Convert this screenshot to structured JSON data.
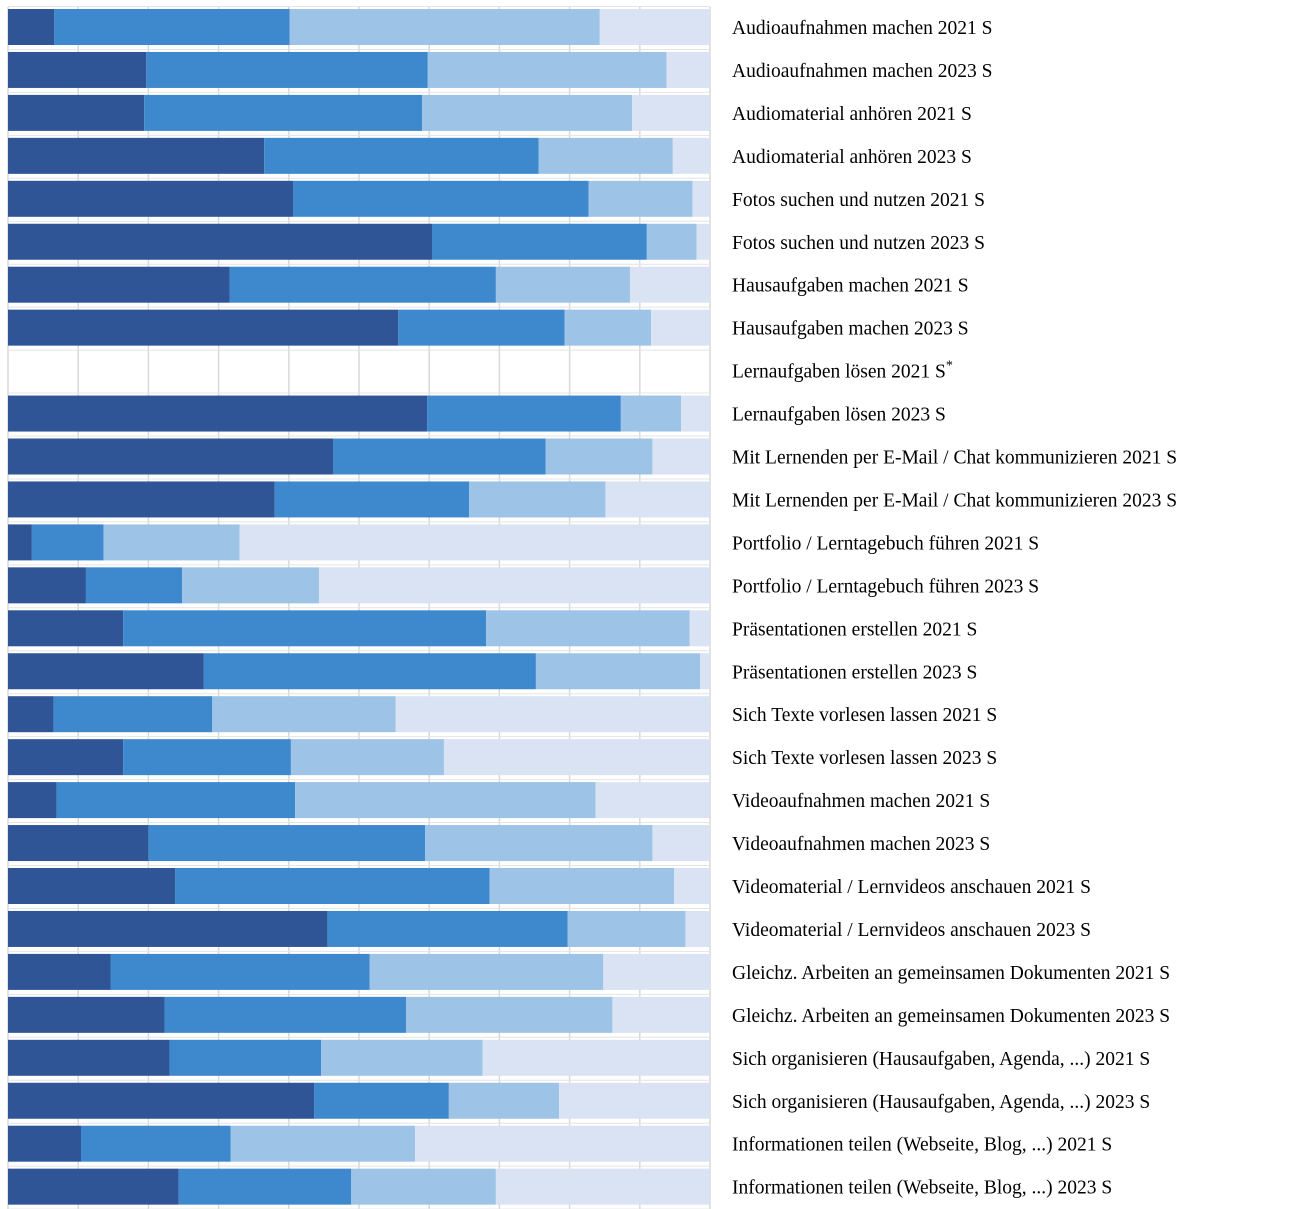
{
  "chart_data": {
    "type": "bar",
    "orientation": "horizontal",
    "stacked": true,
    "percent_stacked": true,
    "grid": true,
    "xlim": [
      0,
      100
    ],
    "colors": [
      "#2F5597",
      "#3E88CE",
      "#9DC3E6",
      "#DAE3F3"
    ],
    "categories": [
      {
        "label": "Audioaufnahmen machen 2021 S",
        "values": [
          6.6,
          33.5,
          44.2,
          15.7
        ]
      },
      {
        "label": "Audioaufnahmen machen 2023 S",
        "values": [
          19.7,
          40.1,
          34.0,
          6.2
        ]
      },
      {
        "label": "Audiomaterial anhören 2021 S",
        "values": [
          19.4,
          39.6,
          29.9,
          11.1
        ]
      },
      {
        "label": "Audiomaterial anhören 2023 S",
        "values": [
          36.5,
          39.1,
          19.1,
          5.3
        ]
      },
      {
        "label": "Fotos suchen und nutzen 2021 S",
        "values": [
          40.6,
          42.1,
          14.8,
          2.5
        ]
      },
      {
        "label": "Fotos suchen und nutzen 2023 S",
        "values": [
          60.4,
          30.6,
          7.1,
          1.9
        ]
      },
      {
        "label": "Hausaufgaben machen 2021 S",
        "values": [
          31.6,
          37.9,
          19.1,
          11.4
        ]
      },
      {
        "label": "Hausaufgaben machen 2023 S",
        "values": [
          55.6,
          23.7,
          12.3,
          8.4
        ]
      },
      {
        "label": "Lernaufgaben lösen 2021 S",
        "values": [],
        "footnote_mark": "*"
      },
      {
        "label": "Lernaufgaben lösen 2023 S",
        "values": [
          59.7,
          27.6,
          8.6,
          4.1
        ]
      },
      {
        "label": "Mit Lernenden per E-Mail / Chat kommunizieren 2021 S",
        "values": [
          46.3,
          30.3,
          15.2,
          8.2
        ]
      },
      {
        "label": "Mit Lernenden per E-Mail / Chat kommunizieren 2023 S",
        "values": [
          38.0,
          27.7,
          19.4,
          14.9
        ]
      },
      {
        "label": "Portfolio / Lerntagebuch führen 2021 S",
        "values": [
          3.4,
          10.2,
          19.4,
          67.0
        ]
      },
      {
        "label": "Portfolio / Lerntagebuch führen 2023 S",
        "values": [
          11.1,
          13.7,
          19.5,
          55.7
        ]
      },
      {
        "label": "Präsentationen erstellen 2021 S",
        "values": [
          16.4,
          51.7,
          29.0,
          2.9
        ]
      },
      {
        "label": "Präsentationen erstellen 2023 S",
        "values": [
          27.9,
          47.3,
          23.4,
          1.4
        ]
      },
      {
        "label": "Sich Texte vorlesen lassen 2021 S",
        "values": [
          6.5,
          22.6,
          26.1,
          44.8
        ]
      },
      {
        "label": "Sich Texte vorlesen lassen 2023 S",
        "values": [
          16.4,
          23.9,
          21.8,
          37.9
        ]
      },
      {
        "label": "Videoaufnahmen machen 2021 S",
        "values": [
          6.9,
          34.0,
          42.8,
          16.3
        ]
      },
      {
        "label": "Videoaufnahmen machen 2023 S",
        "values": [
          20.0,
          39.4,
          32.4,
          8.2
        ]
      },
      {
        "label": "Videomaterial / Lernvideos anschauen 2021 S",
        "values": [
          23.8,
          44.8,
          26.3,
          5.1
        ]
      },
      {
        "label": "Videomaterial / Lernvideos anschauen 2023 S",
        "values": [
          45.5,
          34.2,
          16.8,
          3.5
        ]
      },
      {
        "label": "Gleichz. Arbeiten an gemeinsamen Dokumenten 2021 S",
        "values": [
          14.6,
          36.9,
          33.3,
          15.2
        ]
      },
      {
        "label": "Gleichz. Arbeiten an gemeinsamen Dokumenten 2023 S",
        "values": [
          22.3,
          34.4,
          29.4,
          13.9
        ]
      },
      {
        "label": "Sich organisieren (Hausaufgaben, Agenda, ...) 2021 S",
        "values": [
          23.0,
          21.6,
          23.0,
          32.4
        ]
      },
      {
        "label": "Sich organisieren (Hausaufgaben, Agenda, ...) 2023 S",
        "values": [
          43.6,
          19.2,
          15.7,
          21.5
        ]
      },
      {
        "label": "Informationen teilen (Webseite, Blog, ...) 2021 S",
        "values": [
          10.4,
          21.3,
          26.3,
          42.0
        ]
      },
      {
        "label": "Informationen teilen (Webseite, Blog, ...) 2023 S",
        "values": [
          24.3,
          24.6,
          20.6,
          30.5
        ]
      }
    ]
  }
}
